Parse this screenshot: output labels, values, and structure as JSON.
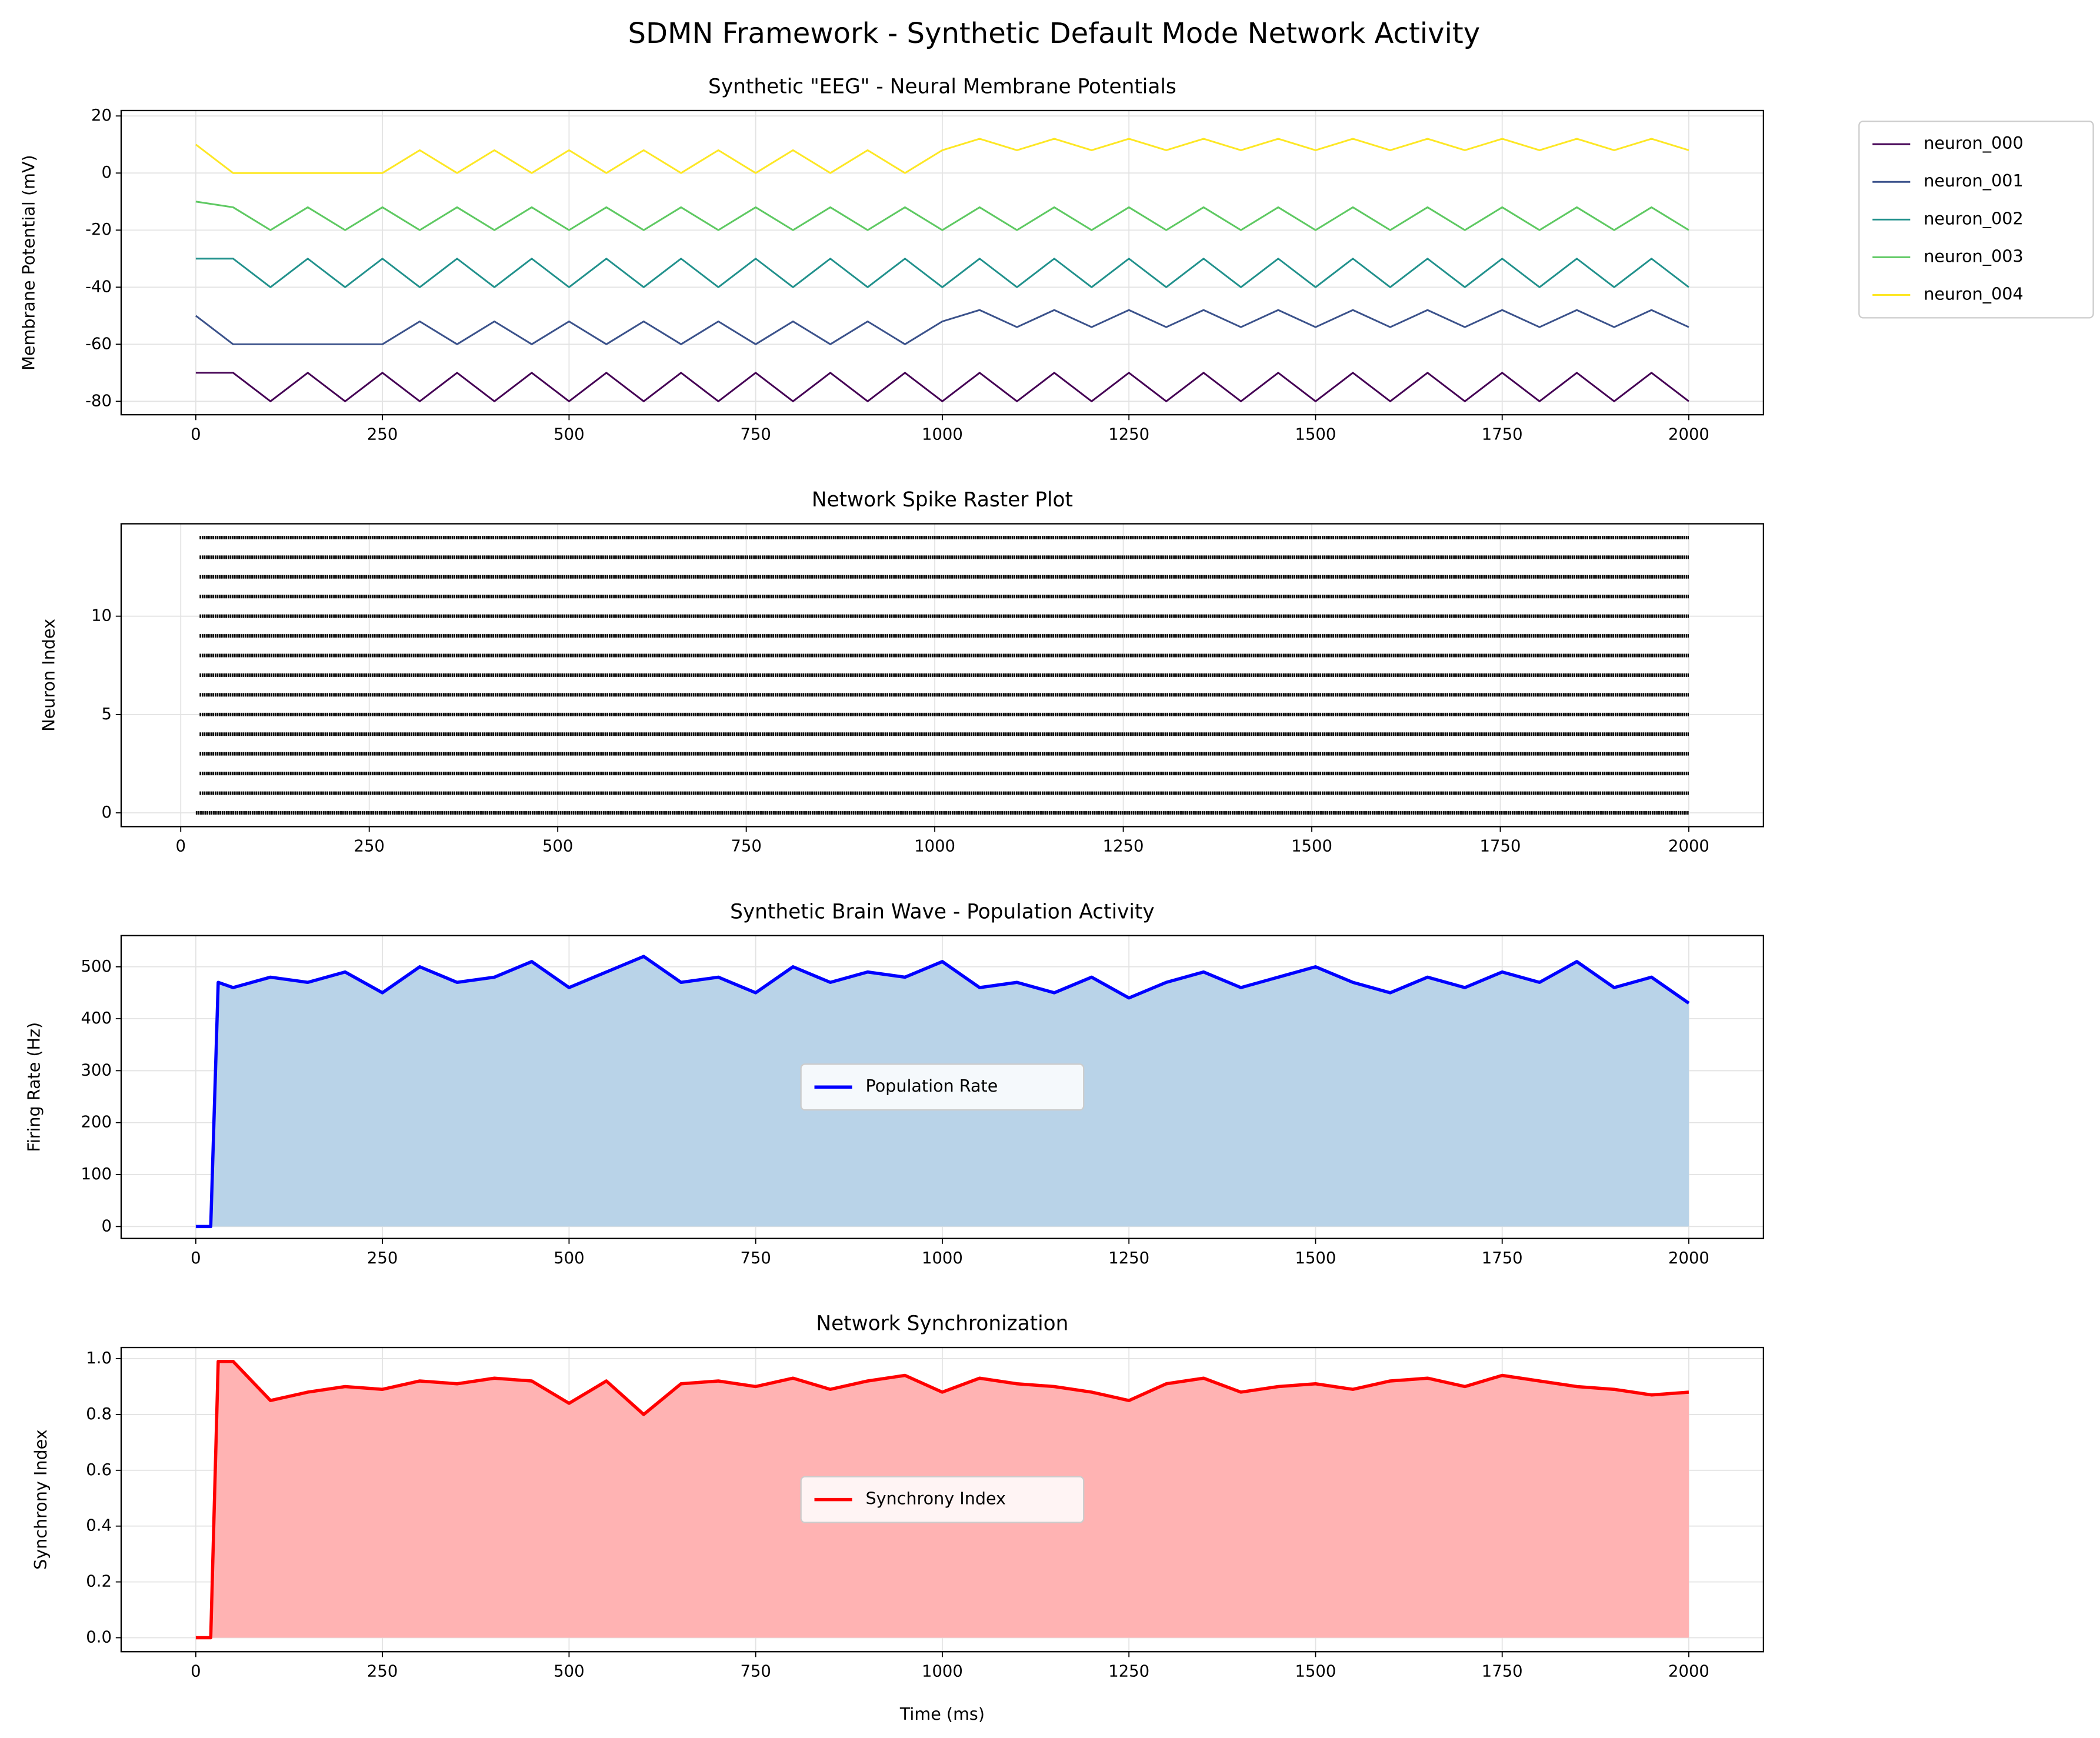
{
  "title": "SDMN Framework - Synthetic Default Mode Network Activity",
  "chart_data": [
    {
      "type": "line",
      "title": "Synthetic \"EEG\" - Neural Membrane Potentials",
      "ylabel": "Membrane Potential (mV)",
      "x": [
        0,
        50,
        100,
        150,
        200,
        250,
        300,
        350,
        400,
        450,
        500,
        550,
        600,
        650,
        700,
        750,
        800,
        850,
        900,
        950,
        1000,
        1050,
        1100,
        1150,
        1200,
        1250,
        1300,
        1350,
        1400,
        1450,
        1500,
        1550,
        1600,
        1650,
        1700,
        1750,
        1800,
        1850,
        1900,
        1950,
        2000
      ],
      "series": [
        {
          "name": "neuron_000",
          "color": "#440154",
          "values": [
            -70,
            -70,
            -80,
            -70,
            -80,
            -70,
            -80,
            -70,
            -80,
            -70,
            -80,
            -70,
            -80,
            -70,
            -80,
            -70,
            -80,
            -70,
            -80,
            -70,
            -80,
            -70,
            -80,
            -70,
            -80,
            -70,
            -80,
            -70,
            -80,
            -70,
            -80,
            -70,
            -80,
            -70,
            -80,
            -70,
            -80,
            -70,
            -80,
            -70,
            -80
          ]
        },
        {
          "name": "neuron_001",
          "color": "#3b528b",
          "values": [
            -50,
            -60,
            -60,
            -60,
            -60,
            -60,
            -52,
            -60,
            -52,
            -60,
            -52,
            -60,
            -52,
            -60,
            -52,
            -60,
            -52,
            -60,
            -52,
            -60,
            -52,
            -48,
            -54,
            -48,
            -54,
            -48,
            -54,
            -48,
            -54,
            -48,
            -54,
            -48,
            -54,
            -48,
            -54,
            -48,
            -54,
            -48,
            -54,
            -48,
            -54
          ]
        },
        {
          "name": "neuron_002",
          "color": "#21918c",
          "values": [
            -30,
            -30,
            -40,
            -30,
            -40,
            -30,
            -40,
            -30,
            -40,
            -30,
            -40,
            -30,
            -40,
            -30,
            -40,
            -30,
            -40,
            -30,
            -40,
            -30,
            -40,
            -30,
            -40,
            -30,
            -40,
            -30,
            -40,
            -30,
            -40,
            -30,
            -40,
            -30,
            -40,
            -30,
            -40,
            -30,
            -40,
            -30,
            -40,
            -30,
            -40
          ]
        },
        {
          "name": "neuron_003",
          "color": "#5ec962",
          "values": [
            -10,
            -12,
            -20,
            -12,
            -20,
            -12,
            -20,
            -12,
            -20,
            -12,
            -20,
            -12,
            -20,
            -12,
            -20,
            -12,
            -20,
            -12,
            -20,
            -12,
            -20,
            -12,
            -20,
            -12,
            -20,
            -12,
            -20,
            -12,
            -20,
            -12,
            -20,
            -12,
            -20,
            -12,
            -20,
            -12,
            -20,
            -12,
            -20,
            -12,
            -20
          ]
        },
        {
          "name": "neuron_004",
          "color": "#fde725",
          "values": [
            10,
            0,
            0,
            0,
            0,
            0,
            8,
            0,
            8,
            0,
            8,
            0,
            8,
            0,
            8,
            0,
            8,
            0,
            8,
            0,
            8,
            12,
            8,
            12,
            8,
            12,
            8,
            12,
            8,
            12,
            8,
            12,
            8,
            12,
            8,
            12,
            8,
            12,
            8,
            12,
            8
          ]
        }
      ],
      "xlim": [
        -100,
        2100
      ],
      "xticks": [
        0,
        250,
        500,
        750,
        1000,
        1250,
        1500,
        1750,
        2000
      ],
      "ylim": [
        -84.7,
        21.9
      ],
      "yticks": [
        -80,
        -60,
        -40,
        -20,
        0,
        20
      ],
      "grid": true,
      "legend": "outside right"
    },
    {
      "type": "raster",
      "title": "Network Spike Raster Plot",
      "ylabel": "Neuron Index",
      "color": "#000000",
      "rows": [
        0,
        1,
        2,
        3,
        4,
        5,
        6,
        7,
        8,
        9,
        10,
        11,
        12,
        13,
        14
      ],
      "t_start": [
        20,
        25,
        25,
        25,
        25,
        25,
        25,
        25,
        25,
        25,
        25,
        25,
        25,
        25,
        25
      ],
      "t_end": [
        2000,
        2000,
        2000,
        2000,
        2000,
        2000,
        2000,
        2000,
        2000,
        2000,
        2000,
        2000,
        2000,
        2000,
        2000
      ],
      "xlim": [
        -79,
        2099
      ],
      "xticks": [
        0,
        250,
        500,
        750,
        1000,
        1250,
        1500,
        1750,
        2000
      ],
      "ylim": [
        -0.7,
        14.7
      ],
      "yticks": [
        0,
        5,
        10
      ],
      "grid": true
    },
    {
      "type": "area",
      "title": "Synthetic Brain Wave - Population Activity",
      "ylabel": "Firing Rate (Hz)",
      "x": [
        0,
        20,
        30,
        50,
        100,
        150,
        200,
        250,
        300,
        350,
        400,
        450,
        500,
        550,
        600,
        650,
        700,
        750,
        800,
        850,
        900,
        950,
        1000,
        1050,
        1100,
        1150,
        1200,
        1250,
        1300,
        1350,
        1400,
        1450,
        1500,
        1550,
        1600,
        1650,
        1700,
        1750,
        1800,
        1850,
        1900,
        1950,
        2000
      ],
      "series": [
        {
          "name": "Population Rate",
          "color": "#0000ff",
          "fill_color": "#b9d3e8",
          "values": [
            0,
            0,
            470,
            460,
            480,
            470,
            490,
            450,
            500,
            470,
            480,
            510,
            460,
            490,
            520,
            470,
            480,
            450,
            500,
            470,
            490,
            480,
            510,
            460,
            470,
            450,
            480,
            440,
            470,
            490,
            460,
            480,
            500,
            470,
            450,
            480,
            460,
            490,
            470,
            510,
            460,
            480,
            430
          ]
        }
      ],
      "xlim": [
        -100,
        2100
      ],
      "xticks": [
        0,
        250,
        500,
        750,
        1000,
        1250,
        1500,
        1750,
        2000
      ],
      "ylim": [
        -23,
        560
      ],
      "yticks": [
        0,
        100,
        200,
        300,
        400,
        500
      ],
      "grid": true,
      "legend": "center"
    },
    {
      "type": "area",
      "title": "Network Synchronization",
      "ylabel": "Synchrony Index",
      "xlabel": "Time (ms)",
      "x": [
        0,
        20,
        30,
        50,
        100,
        150,
        200,
        250,
        300,
        350,
        400,
        450,
        500,
        550,
        600,
        650,
        700,
        750,
        800,
        850,
        900,
        950,
        1000,
        1050,
        1100,
        1150,
        1200,
        1250,
        1300,
        1350,
        1400,
        1450,
        1500,
        1550,
        1600,
        1650,
        1700,
        1750,
        1800,
        1850,
        1900,
        1950,
        2000
      ],
      "series": [
        {
          "name": "Synchrony Index",
          "color": "#ff0000",
          "fill_color": "#ffb3b3",
          "values": [
            0,
            0,
            0.99,
            0.99,
            0.85,
            0.88,
            0.9,
            0.89,
            0.92,
            0.91,
            0.93,
            0.92,
            0.84,
            0.92,
            0.8,
            0.91,
            0.92,
            0.9,
            0.93,
            0.89,
            0.92,
            0.94,
            0.88,
            0.93,
            0.91,
            0.9,
            0.88,
            0.85,
            0.91,
            0.93,
            0.88,
            0.9,
            0.91,
            0.89,
            0.92,
            0.93,
            0.9,
            0.94,
            0.92,
            0.9,
            0.89,
            0.87,
            0.88
          ]
        }
      ],
      "xlim": [
        -100,
        2100
      ],
      "xticks": [
        0,
        250,
        500,
        750,
        1000,
        1250,
        1500,
        1750,
        2000
      ],
      "ylim": [
        -0.05,
        1.04
      ],
      "yticks": [
        {
          "value": 0,
          "label": "0.0"
        },
        0.2,
        0.4,
        0.6,
        0.8,
        {
          "value": 1,
          "label": "1.0"
        }
      ],
      "grid": true,
      "legend": "center"
    }
  ]
}
